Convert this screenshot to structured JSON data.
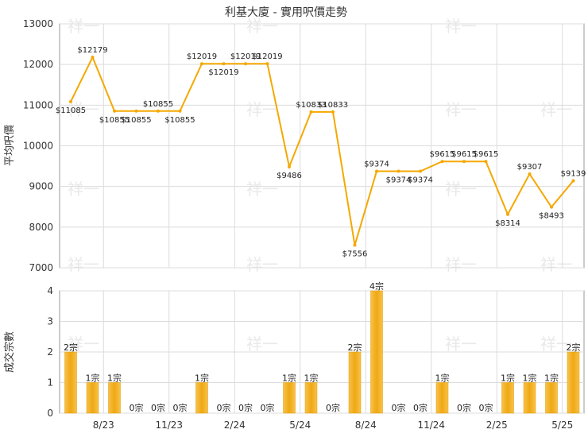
{
  "chart_data": [
    {
      "type": "line",
      "title": "利基大廈 - 實用呎價走勢",
      "ylabel": "平均呎價",
      "ylim": [
        7000,
        13000
      ],
      "y_ticks": [
        7000,
        8000,
        9000,
        10000,
        11000,
        12000,
        13000
      ],
      "grid": true,
      "line_color": "#f5a800",
      "values": [
        11085,
        12179,
        10855,
        10855,
        10855,
        10855,
        12019,
        12019,
        12019,
        12019,
        9486,
        10833,
        10833,
        7556,
        9374,
        9374,
        9374,
        9615,
        9615,
        9615,
        8314,
        9307,
        8493,
        9139
      ],
      "labels": [
        "$11085",
        "$12179",
        "$10855",
        "$10855",
        "$10855",
        "$10855",
        "$12019",
        "$12019",
        "$12019",
        "$12019",
        "$9486",
        "$10833",
        "$10833",
        "$7556",
        "$9374",
        "$9374",
        "$9374",
        "$9615",
        "$9615",
        "$9615",
        "$8314",
        "$9307",
        "$8493",
        "$9139"
      ]
    },
    {
      "type": "bar",
      "ylabel": "成交宗數",
      "ylim": [
        0,
        4
      ],
      "y_ticks": [
        0,
        1,
        2,
        3,
        4
      ],
      "grid": true,
      "bar_color": "#f0a814",
      "values": [
        2,
        1,
        1,
        0,
        0,
        0,
        1,
        0,
        0,
        0,
        1,
        1,
        0,
        2,
        4,
        0,
        0,
        1,
        0,
        0,
        1,
        1,
        1,
        2
      ],
      "labels": [
        "2宗",
        "1宗",
        "1宗",
        "0宗",
        "0宗",
        "0宗",
        "1宗",
        "0宗",
        "0宗",
        "0宗",
        "1宗",
        "1宗",
        "0宗",
        "2宗",
        "4宗",
        "0宗",
        "0宗",
        "1宗",
        "0宗",
        "0宗",
        "1宗",
        "1宗",
        "1宗",
        "2宗"
      ],
      "x_tick_labels": [
        {
          "index": 1.5,
          "label": "8/23"
        },
        {
          "index": 4.5,
          "label": "11/23"
        },
        {
          "index": 7.5,
          "label": "2/24"
        },
        {
          "index": 10.5,
          "label": "5/24"
        },
        {
          "index": 13.5,
          "label": "8/24"
        },
        {
          "index": 16.5,
          "label": "11/24"
        },
        {
          "index": 19.5,
          "label": "2/25"
        },
        {
          "index": 22.5,
          "label": "5/25"
        }
      ]
    }
  ],
  "watermark": "祥一"
}
